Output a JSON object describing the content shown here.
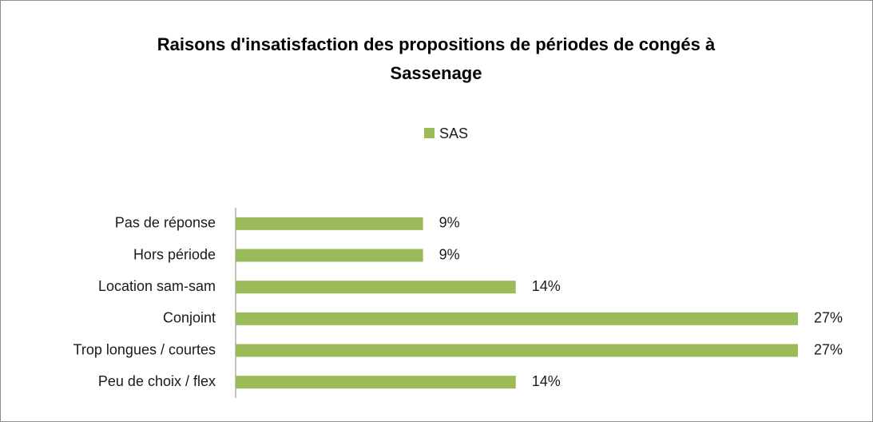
{
  "chart_data": {
    "type": "barh",
    "title": "Raisons d'insatisfaction des propositions de périodes de congés à Sassenage",
    "categories": [
      "Pas de réponse",
      "Hors période",
      "Location sam-sam",
      "Conjoint",
      "Trop longues / courtes",
      "Peu de choix / flex"
    ],
    "series": [
      {
        "name": "SAS",
        "color": "#9bbb59",
        "values": [
          9.1,
          9.1,
          13.6,
          27.3,
          27.3,
          13.6
        ],
        "value_labels": [
          "9%",
          "9%",
          "14%",
          "27%",
          "27%",
          "14%"
        ]
      }
    ],
    "xlim": [
      0,
      27.3
    ],
    "legend": "top"
  }
}
